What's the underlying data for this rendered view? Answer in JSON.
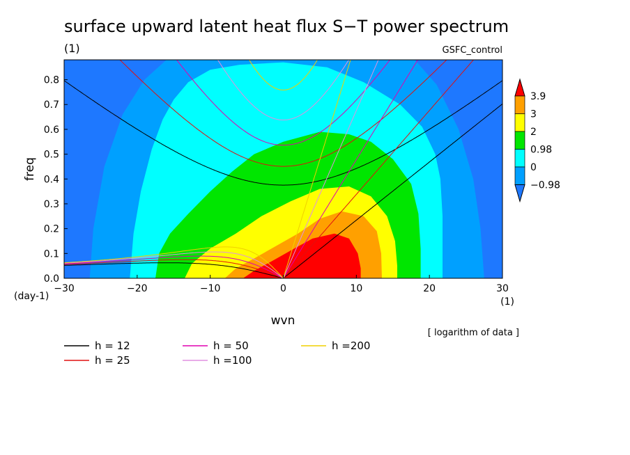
{
  "chart_data": {
    "type": "heatmap",
    "title": "surface upward latent heat flux S−T power spectrum",
    "subtitle_left": "(1)",
    "subtitle_right": "GSFC_control",
    "xlabel": "wvn",
    "ylabel": "freq",
    "x_unit": "(1)",
    "y_unit": "(day-1)",
    "note": "[ logarithm of data ]",
    "xlim": [
      -30,
      30
    ],
    "ylim": [
      0,
      0.88
    ],
    "x_ticks": [
      -30,
      -20,
      -10,
      0,
      10,
      20,
      30
    ],
    "x_tick_labels": [
      "−30",
      "−20",
      "−10",
      "0",
      "10",
      "20",
      "30"
    ],
    "y_ticks": [
      0,
      0.1,
      0.2,
      0.3,
      0.4,
      0.5,
      0.6,
      0.7,
      0.8
    ],
    "y_tick_labels": [
      "0.0",
      "0.1",
      "0.2",
      "0.3",
      "0.4",
      "0.5",
      "0.6",
      "0.7",
      "0.8"
    ],
    "contour_levels": [
      -0.98,
      0,
      0.98,
      2,
      3,
      3.9
    ],
    "colorbar_labels": [
      "−0.98",
      "0",
      "0.98",
      "2",
      "3",
      "3.9"
    ],
    "level_colors": [
      "#1e78ff",
      "#00a0ff",
      "#00ffff",
      "#00e600",
      "#ffff00",
      "#ffa000",
      "#ff0000"
    ],
    "dispersion_lines": [
      {
        "label": "h = 12",
        "h": 12,
        "color": "#000000"
      },
      {
        "label": "h = 25",
        "h": 25,
        "color": "#e01010"
      },
      {
        "label": "h = 50",
        "h": 50,
        "color": "#e000b0"
      },
      {
        "label": "h =100",
        "h": 100,
        "color": "#e090e0"
      },
      {
        "label": "h =200",
        "h": 200,
        "color": "#f0d000"
      }
    ]
  }
}
